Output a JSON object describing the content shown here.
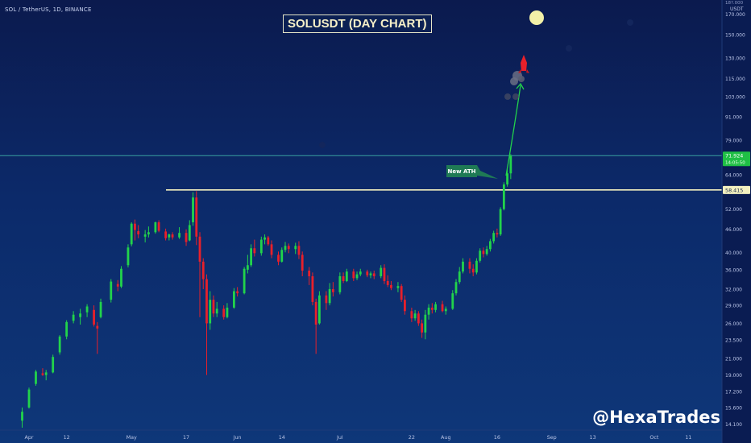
{
  "header": {
    "ticker": "SOL / TetherUS, 1D, BINANCE"
  },
  "chart_title": "SOLUSDT (DAY CHART)",
  "watermark": "@HexaTrades",
  "annotation_label": "New ATH",
  "colors": {
    "up": "#22d34b",
    "down": "#e8202a",
    "ath_line": "#f2f0c0",
    "price_line": "#3aa0a0",
    "arrow": "#22d34b"
  },
  "chart_data": {
    "type": "candlestick",
    "title": "SOLUSDT (DAY CHART)",
    "y_scale": "log",
    "ylim": [
      13.6,
      185
    ],
    "y_axis_unit": "USDT",
    "y_ticks": [
      "14.100",
      "15.600",
      "17.200",
      "19.000",
      "21.000",
      "23.500",
      "26.000",
      "29.000",
      "32.000",
      "36.000",
      "40.000",
      "46.000",
      "52.000",
      "64.000",
      "79.000",
      "91.000",
      "103.000",
      "115.000",
      "130.000",
      "150.000",
      "170.000"
    ],
    "top_tick": "18?.000",
    "current_price": "71.924",
    "current_countdown": "14:05:50",
    "ath_level_label": "58.415",
    "ath_level": 58.415,
    "x_ticks": [
      "Apr",
      "12",
      "May",
      "17",
      "Jun",
      "14",
      "Jul",
      "22",
      "Aug",
      "16",
      "Sep",
      "13",
      "Oct",
      "11"
    ],
    "first_date": "2021-03-30",
    "candles": [
      {
        "date": "2021-03-30",
        "o": 14.4,
        "h": 15.6,
        "l": 13.8,
        "c": 15.2
      },
      {
        "date": "2021-04-01",
        "o": 15.6,
        "h": 17.6,
        "l": 15.5,
        "c": 17.4
      },
      {
        "date": "2021-04-03",
        "o": 18.0,
        "h": 19.6,
        "l": 17.8,
        "c": 19.4
      },
      {
        "date": "2021-04-05",
        "o": 19.2,
        "h": 19.8,
        "l": 18.9,
        "c": 19.0
      },
      {
        "date": "2021-04-06",
        "o": 19.0,
        "h": 19.6,
        "l": 18.4,
        "c": 19.3
      },
      {
        "date": "2021-04-08",
        "o": 19.3,
        "h": 21.5,
        "l": 19.2,
        "c": 21.2
      },
      {
        "date": "2021-04-10",
        "o": 21.8,
        "h": 24.2,
        "l": 21.5,
        "c": 24.0
      },
      {
        "date": "2021-04-12",
        "o": 24.0,
        "h": 26.5,
        "l": 23.6,
        "c": 26.2
      },
      {
        "date": "2021-04-14",
        "o": 26.4,
        "h": 28.0,
        "l": 26.0,
        "c": 27.4
      },
      {
        "date": "2021-04-16",
        "o": 27.0,
        "h": 28.4,
        "l": 25.8,
        "c": 27.6
      },
      {
        "date": "2021-04-18",
        "o": 27.8,
        "h": 29.2,
        "l": 27.0,
        "c": 28.8
      },
      {
        "date": "2021-04-20",
        "o": 28.2,
        "h": 29.0,
        "l": 25.5,
        "c": 25.8
      },
      {
        "date": "2021-04-21",
        "o": 25.6,
        "h": 26.2,
        "l": 21.6,
        "c": 25.2
      },
      {
        "date": "2021-04-22",
        "o": 27.0,
        "h": 30.2,
        "l": 26.8,
        "c": 29.6
      },
      {
        "date": "2021-04-25",
        "o": 30.0,
        "h": 34.0,
        "l": 29.5,
        "c": 33.5
      },
      {
        "date": "2021-04-27",
        "o": 33.0,
        "h": 33.8,
        "l": 31.6,
        "c": 32.5
      },
      {
        "date": "2021-04-28",
        "o": 32.5,
        "h": 36.8,
        "l": 32.2,
        "c": 36.2
      },
      {
        "date": "2021-04-30",
        "o": 37.0,
        "h": 42.0,
        "l": 36.5,
        "c": 41.2
      },
      {
        "date": "2021-05-01",
        "o": 42.0,
        "h": 48.0,
        "l": 41.5,
        "c": 47.6
      },
      {
        "date": "2021-05-02",
        "o": 47.6,
        "h": 48.8,
        "l": 43.0,
        "c": 45.8
      },
      {
        "date": "2021-05-03",
        "o": 45.5,
        "h": 47.2,
        "l": 43.6,
        "c": 44.6
      },
      {
        "date": "2021-05-05",
        "o": 44.0,
        "h": 45.8,
        "l": 42.5,
        "c": 44.6
      },
      {
        "date": "2021-05-06",
        "o": 44.6,
        "h": 46.8,
        "l": 43.8,
        "c": 45.2
      },
      {
        "date": "2021-05-08",
        "o": 45.2,
        "h": 48.2,
        "l": 44.8,
        "c": 48.0
      },
      {
        "date": "2021-05-09",
        "o": 48.0,
        "h": 48.6,
        "l": 45.2,
        "c": 45.6
      },
      {
        "date": "2021-05-11",
        "o": 45.4,
        "h": 46.2,
        "l": 43.0,
        "c": 43.6
      },
      {
        "date": "2021-05-12",
        "o": 43.8,
        "h": 44.8,
        "l": 43.0,
        "c": 44.6
      },
      {
        "date": "2021-05-13",
        "o": 44.6,
        "h": 45.2,
        "l": 43.2,
        "c": 43.8
      },
      {
        "date": "2021-05-15",
        "o": 43.8,
        "h": 46.6,
        "l": 43.4,
        "c": 45.0
      },
      {
        "date": "2021-05-17",
        "o": 45.0,
        "h": 46.0,
        "l": 41.6,
        "c": 42.6
      },
      {
        "date": "2021-05-18",
        "o": 43.0,
        "h": 48.6,
        "l": 42.8,
        "c": 47.2
      },
      {
        "date": "2021-05-19",
        "o": 48.0,
        "h": 57.6,
        "l": 47.0,
        "c": 55.8
      },
      {
        "date": "2021-05-20",
        "o": 55.8,
        "h": 58.0,
        "l": 41.8,
        "c": 44.0
      },
      {
        "date": "2021-05-21",
        "o": 44.0,
        "h": 45.2,
        "l": 27.0,
        "c": 37.8
      },
      {
        "date": "2021-05-22",
        "o": 37.8,
        "h": 38.6,
        "l": 32.0,
        "c": 34.0
      },
      {
        "date": "2021-05-23",
        "o": 34.0,
        "h": 35.0,
        "l": 19.0,
        "c": 26.0
      },
      {
        "date": "2021-05-24",
        "o": 26.0,
        "h": 31.6,
        "l": 25.0,
        "c": 30.0
      },
      {
        "date": "2021-05-25",
        "o": 30.0,
        "h": 30.8,
        "l": 27.0,
        "c": 27.6
      },
      {
        "date": "2021-05-26",
        "o": 27.6,
        "h": 29.6,
        "l": 27.0,
        "c": 28.4
      },
      {
        "date": "2021-05-28",
        "o": 28.4,
        "h": 29.0,
        "l": 26.6,
        "c": 27.0
      },
      {
        "date": "2021-05-29",
        "o": 27.0,
        "h": 29.4,
        "l": 26.8,
        "c": 28.6
      },
      {
        "date": "2021-05-31",
        "o": 28.6,
        "h": 32.2,
        "l": 28.4,
        "c": 31.6
      },
      {
        "date": "2021-06-01",
        "o": 31.6,
        "h": 32.4,
        "l": 30.6,
        "c": 31.2
      },
      {
        "date": "2021-06-03",
        "o": 31.2,
        "h": 36.6,
        "l": 31.0,
        "c": 36.2
      },
      {
        "date": "2021-06-04",
        "o": 36.0,
        "h": 39.4,
        "l": 35.2,
        "c": 37.0
      },
      {
        "date": "2021-06-05",
        "o": 37.0,
        "h": 42.0,
        "l": 36.6,
        "c": 41.0
      },
      {
        "date": "2021-06-06",
        "o": 41.0,
        "h": 43.2,
        "l": 39.0,
        "c": 39.8
      },
      {
        "date": "2021-06-08",
        "o": 39.8,
        "h": 44.0,
        "l": 39.2,
        "c": 43.2
      },
      {
        "date": "2021-06-09",
        "o": 43.2,
        "h": 44.6,
        "l": 42.0,
        "c": 43.8
      },
      {
        "date": "2021-06-10",
        "o": 43.8,
        "h": 44.2,
        "l": 41.6,
        "c": 42.0
      },
      {
        "date": "2021-06-11",
        "o": 42.0,
        "h": 43.0,
        "l": 38.6,
        "c": 39.4
      },
      {
        "date": "2021-06-13",
        "o": 39.4,
        "h": 40.2,
        "l": 37.0,
        "c": 37.8
      },
      {
        "date": "2021-06-14",
        "o": 37.8,
        "h": 41.2,
        "l": 37.6,
        "c": 40.6
      },
      {
        "date": "2021-06-15",
        "o": 40.6,
        "h": 42.6,
        "l": 40.0,
        "c": 41.6
      },
      {
        "date": "2021-06-16",
        "o": 41.6,
        "h": 42.2,
        "l": 39.8,
        "c": 40.8
      },
      {
        "date": "2021-06-18",
        "o": 40.8,
        "h": 42.4,
        "l": 39.6,
        "c": 41.6
      },
      {
        "date": "2021-06-19",
        "o": 41.6,
        "h": 42.8,
        "l": 38.4,
        "c": 39.4
      },
      {
        "date": "2021-06-20",
        "o": 39.4,
        "h": 40.2,
        "l": 34.6,
        "c": 35.8
      },
      {
        "date": "2021-06-22",
        "o": 35.8,
        "h": 36.6,
        "l": 32.8,
        "c": 34.6
      },
      {
        "date": "2021-06-23",
        "o": 34.6,
        "h": 35.4,
        "l": 29.0,
        "c": 29.6
      },
      {
        "date": "2021-06-24",
        "o": 29.6,
        "h": 30.2,
        "l": 21.6,
        "c": 25.8
      },
      {
        "date": "2021-06-25",
        "o": 26.0,
        "h": 31.6,
        "l": 25.8,
        "c": 30.8
      },
      {
        "date": "2021-06-27",
        "o": 30.8,
        "h": 31.6,
        "l": 28.2,
        "c": 29.4
      },
      {
        "date": "2021-06-28",
        "o": 29.4,
        "h": 33.2,
        "l": 29.0,
        "c": 32.0
      },
      {
        "date": "2021-06-29",
        "o": 32.0,
        "h": 33.4,
        "l": 30.6,
        "c": 31.4
      },
      {
        "date": "2021-07-01",
        "o": 31.4,
        "h": 35.4,
        "l": 31.0,
        "c": 34.6
      },
      {
        "date": "2021-07-02",
        "o": 34.6,
        "h": 35.4,
        "l": 33.2,
        "c": 33.6
      },
      {
        "date": "2021-07-03",
        "o": 33.6,
        "h": 36.2,
        "l": 33.4,
        "c": 35.6
      },
      {
        "date": "2021-07-05",
        "o": 35.6,
        "h": 36.2,
        "l": 33.6,
        "c": 34.2
      },
      {
        "date": "2021-07-06",
        "o": 34.2,
        "h": 35.6,
        "l": 33.8,
        "c": 35.0
      },
      {
        "date": "2021-07-07",
        "o": 35.0,
        "h": 36.2,
        "l": 34.6,
        "c": 35.6
      },
      {
        "date": "2021-07-09",
        "o": 35.6,
        "h": 36.0,
        "l": 34.4,
        "c": 34.8
      },
      {
        "date": "2021-07-10",
        "o": 34.8,
        "h": 35.6,
        "l": 34.2,
        "c": 35.2
      },
      {
        "date": "2021-07-11",
        "o": 35.2,
        "h": 35.8,
        "l": 34.0,
        "c": 34.6
      },
      {
        "date": "2021-07-13",
        "o": 34.6,
        "h": 37.0,
        "l": 34.2,
        "c": 36.4
      },
      {
        "date": "2021-07-14",
        "o": 36.4,
        "h": 37.2,
        "l": 33.0,
        "c": 33.6
      },
      {
        "date": "2021-07-15",
        "o": 33.6,
        "h": 34.8,
        "l": 32.4,
        "c": 32.8
      },
      {
        "date": "2021-07-16",
        "o": 32.8,
        "h": 33.6,
        "l": 31.8,
        "c": 32.2
      },
      {
        "date": "2021-07-18",
        "o": 32.2,
        "h": 33.4,
        "l": 31.4,
        "c": 32.6
      },
      {
        "date": "2021-07-19",
        "o": 32.6,
        "h": 33.0,
        "l": 29.6,
        "c": 30.0
      },
      {
        "date": "2021-07-20",
        "o": 30.0,
        "h": 30.8,
        "l": 27.4,
        "c": 28.0
      },
      {
        "date": "2021-07-22",
        "o": 28.0,
        "h": 28.6,
        "l": 26.2,
        "c": 26.8
      },
      {
        "date": "2021-07-23",
        "o": 26.8,
        "h": 28.2,
        "l": 26.4,
        "c": 27.6
      },
      {
        "date": "2021-07-24",
        "o": 27.6,
        "h": 28.0,
        "l": 25.6,
        "c": 26.0
      },
      {
        "date": "2021-07-25",
        "o": 26.0,
        "h": 26.6,
        "l": 23.8,
        "c": 24.6
      },
      {
        "date": "2021-07-26",
        "o": 24.6,
        "h": 28.2,
        "l": 23.6,
        "c": 27.4
      },
      {
        "date": "2021-07-27",
        "o": 27.4,
        "h": 29.2,
        "l": 26.6,
        "c": 28.6
      },
      {
        "date": "2021-07-28",
        "o": 28.6,
        "h": 29.4,
        "l": 27.6,
        "c": 28.2
      },
      {
        "date": "2021-07-29",
        "o": 28.2,
        "h": 29.6,
        "l": 27.8,
        "c": 29.2
      },
      {
        "date": "2021-07-31",
        "o": 29.2,
        "h": 29.8,
        "l": 27.8,
        "c": 28.0
      },
      {
        "date": "2021-08-01",
        "o": 28.0,
        "h": 28.8,
        "l": 27.4,
        "c": 28.4
      },
      {
        "date": "2021-08-03",
        "o": 28.4,
        "h": 31.8,
        "l": 28.2,
        "c": 31.2
      },
      {
        "date": "2021-08-04",
        "o": 31.2,
        "h": 34.0,
        "l": 30.8,
        "c": 33.4
      },
      {
        "date": "2021-08-05",
        "o": 33.4,
        "h": 36.6,
        "l": 33.0,
        "c": 35.6
      },
      {
        "date": "2021-08-06",
        "o": 35.6,
        "h": 38.6,
        "l": 35.2,
        "c": 37.8
      },
      {
        "date": "2021-08-08",
        "o": 37.8,
        "h": 38.6,
        "l": 35.2,
        "c": 36.2
      },
      {
        "date": "2021-08-09",
        "o": 36.2,
        "h": 37.2,
        "l": 34.6,
        "c": 35.4
      },
      {
        "date": "2021-08-10",
        "o": 35.4,
        "h": 38.6,
        "l": 35.0,
        "c": 38.0
      },
      {
        "date": "2021-08-11",
        "o": 38.0,
        "h": 41.0,
        "l": 37.6,
        "c": 40.4
      },
      {
        "date": "2021-08-12",
        "o": 40.4,
        "h": 41.2,
        "l": 38.8,
        "c": 39.6
      },
      {
        "date": "2021-08-13",
        "o": 39.6,
        "h": 41.6,
        "l": 39.2,
        "c": 40.8
      },
      {
        "date": "2021-08-14",
        "o": 40.8,
        "h": 43.4,
        "l": 40.2,
        "c": 42.8
      },
      {
        "date": "2021-08-15",
        "o": 42.8,
        "h": 45.6,
        "l": 42.2,
        "c": 45.0
      },
      {
        "date": "2021-08-16",
        "o": 45.0,
        "h": 46.2,
        "l": 43.8,
        "c": 44.6
      },
      {
        "date": "2021-08-17",
        "o": 44.6,
        "h": 52.6,
        "l": 44.2,
        "c": 52.0
      },
      {
        "date": "2021-08-18",
        "o": 52.0,
        "h": 61.2,
        "l": 51.6,
        "c": 60.4
      },
      {
        "date": "2021-08-19",
        "o": 60.4,
        "h": 66.2,
        "l": 59.6,
        "c": 64.6
      },
      {
        "date": "2021-08-20",
        "o": 64.6,
        "h": 72.6,
        "l": 62.4,
        "c": 71.9
      }
    ]
  }
}
